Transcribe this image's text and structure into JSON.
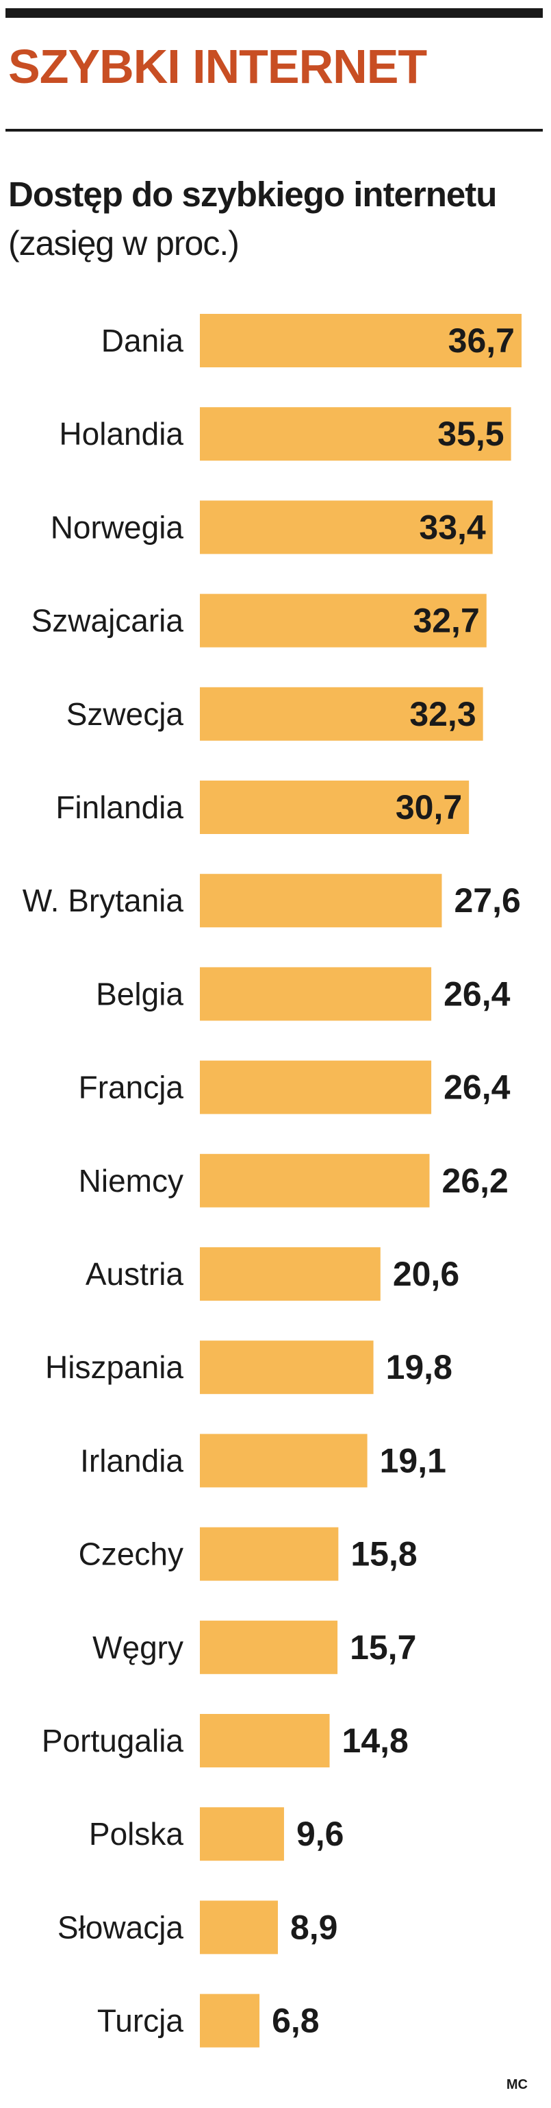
{
  "header": {
    "title": "SZYBKI INTERNET"
  },
  "colors": {
    "bar": "#f7b955",
    "title": "#c84e23",
    "text": "#1a1a1a"
  },
  "chart_data": {
    "type": "bar",
    "orientation": "horizontal",
    "title": "Dostęp do szybkiego internetu",
    "subtitle": "(zasięg w proc.)",
    "categories": [
      "Dania",
      "Holandia",
      "Norwegia",
      "Szwajcaria",
      "Szwecja",
      "Finlandia",
      "W. Brytania",
      "Belgia",
      "Francja",
      "Niemcy",
      "Austria",
      "Hiszpania",
      "Irlandia",
      "Czechy",
      "Węgry",
      "Portugalia",
      "Polska",
      "Słowacja",
      "Turcja"
    ],
    "values": [
      36.7,
      35.5,
      33.4,
      32.7,
      32.3,
      30.7,
      27.6,
      26.4,
      26.4,
      26.2,
      20.6,
      19.8,
      19.1,
      15.8,
      15.7,
      14.8,
      9.6,
      8.9,
      6.8
    ],
    "value_labels": [
      "36,7",
      "35,5",
      "33,4",
      "32,7",
      "32,3",
      "30,7",
      "27,6",
      "26,4",
      "26,4",
      "26,2",
      "20,6",
      "19,8",
      "19,1",
      "15,8",
      "15,7",
      "14,8",
      "9,6",
      "8,9",
      "6,8"
    ],
    "xlim": [
      0,
      36.7
    ],
    "grid": false,
    "legend": "none"
  },
  "footer": {
    "credit": "MC"
  }
}
